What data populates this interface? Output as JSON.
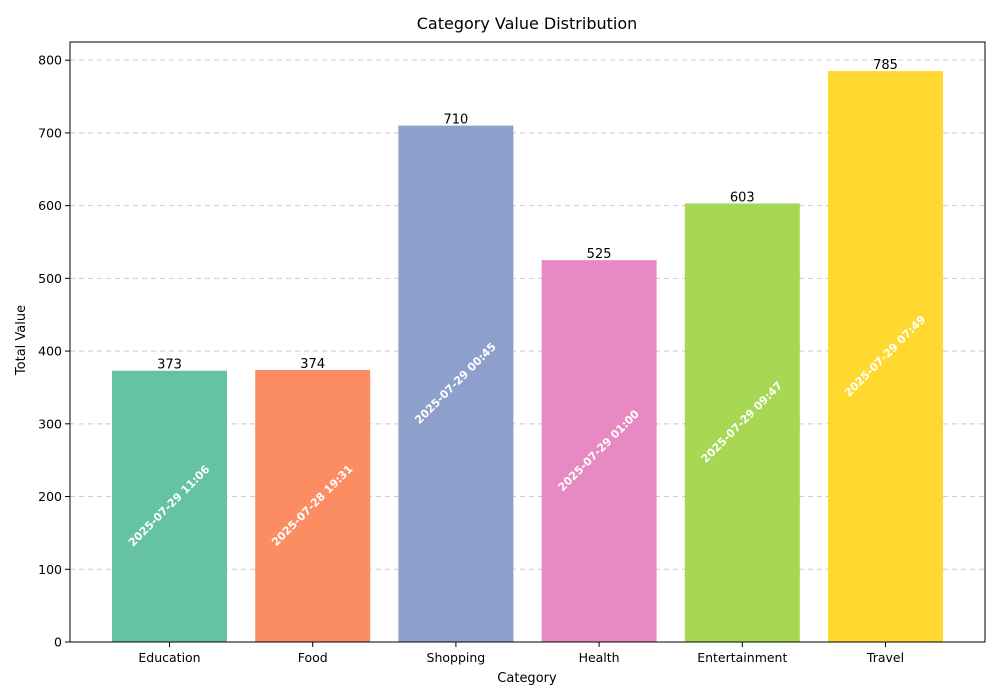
{
  "chart_data": {
    "type": "bar",
    "title": "Category Value Distribution",
    "xlabel": "Category",
    "ylabel": "Total Value",
    "categories": [
      "Education",
      "Food",
      "Shopping",
      "Health",
      "Entertainment",
      "Travel"
    ],
    "values": [
      373,
      374,
      710,
      525,
      603,
      785
    ],
    "timestamps": [
      "2025-07-29 11:06",
      "2025-07-28 19:31",
      "2025-07-29 00:45",
      "2025-07-29 01:00",
      "2025-07-29 09:47",
      "2025-07-29 07:49"
    ],
    "colors": [
      "#66c2a5",
      "#fc8d62",
      "#8da0cb",
      "#e78ac3",
      "#a6d854",
      "#ffd92f"
    ],
    "ylim": [
      0,
      825
    ],
    "yticks": [
      0,
      100,
      200,
      300,
      400,
      500,
      600,
      700,
      800
    ],
    "grid": "y-dashed",
    "legend": "none"
  }
}
